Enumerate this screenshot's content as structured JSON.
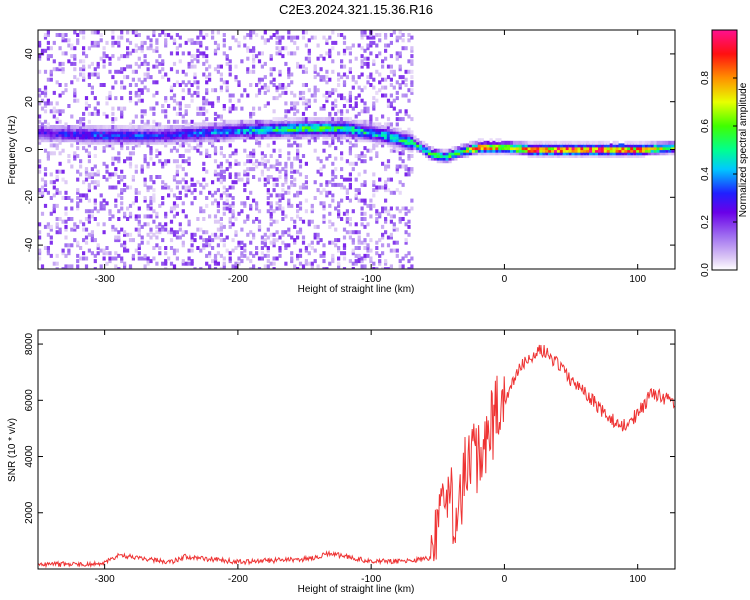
{
  "title": "C2E3.2024.321.15.36.R16",
  "chart_data": [
    {
      "type": "heatmap",
      "xlabel": "Height of straight line (km)",
      "ylabel": "Frequency (Hz)",
      "xlim": [
        -350,
        128
      ],
      "ylim": [
        -50,
        50
      ],
      "xticks": [
        -300,
        -200,
        -100,
        0,
        100
      ],
      "yticks": [
        -40,
        -20,
        0,
        20,
        40
      ],
      "colorbar": {
        "label": "Normalized spectral amplitude",
        "range": [
          0,
          1
        ],
        "ticks": [
          0.0,
          0.2,
          0.4,
          0.6,
          0.8
        ],
        "tick_labels": [
          "0.0",
          "0.2",
          "0.4",
          "0.6",
          "0.8"
        ],
        "colormap": "rainbow (white-lavender-violet-blue-cyan-green-yellow-orange-red-magenta)"
      },
      "ridge": {
        "description": "frequency ridge vs height",
        "x": [
          -350,
          -300,
          -260,
          -200,
          -150,
          -120,
          -90,
          -70,
          -55,
          -45,
          -35,
          -20,
          -10,
          0,
          20,
          60,
          100,
          128
        ],
        "freq_hz": [
          7,
          6,
          6,
          8,
          9,
          9,
          6,
          3,
          -2,
          -3,
          -1,
          1,
          1,
          1,
          0,
          0,
          0,
          1
        ],
        "peak_amplitude": [
          0.25,
          0.35,
          0.3,
          0.4,
          0.55,
          0.5,
          0.45,
          0.5,
          0.55,
          0.55,
          0.6,
          0.85,
          0.85,
          0.75,
          0.9,
          0.95,
          0.85,
          0.6
        ]
      }
    },
    {
      "type": "line",
      "xlabel": "Height of straight line (km)",
      "ylabel": "SNR (10 * v/v)",
      "xlim": [
        -350,
        128
      ],
      "ylim": [
        0,
        8500
      ],
      "xticks": [
        -300,
        -200,
        -100,
        0,
        100
      ],
      "yticks": [
        2000,
        4000,
        6000,
        8000
      ],
      "series": [
        {
          "color": "#ee3333",
          "x": [
            -350,
            -300,
            -290,
            -250,
            -240,
            -200,
            -150,
            -130,
            -100,
            -70,
            -55,
            -50,
            -45,
            -42,
            -40,
            -35,
            -30,
            -20,
            -15,
            -10,
            0,
            10,
            20,
            30,
            40,
            50,
            60,
            70,
            80,
            90,
            100,
            110,
            120,
            128
          ],
          "y": [
            150,
            200,
            500,
            250,
            450,
            250,
            350,
            550,
            250,
            300,
            400,
            1500,
            3000,
            3200,
            2400,
            2000,
            3500,
            4000,
            4500,
            5000,
            6000,
            7000,
            7600,
            7800,
            7300,
            6700,
            6300,
            5800,
            5300,
            5100,
            5500,
            6200,
            6100,
            5800
          ]
        }
      ]
    }
  ]
}
